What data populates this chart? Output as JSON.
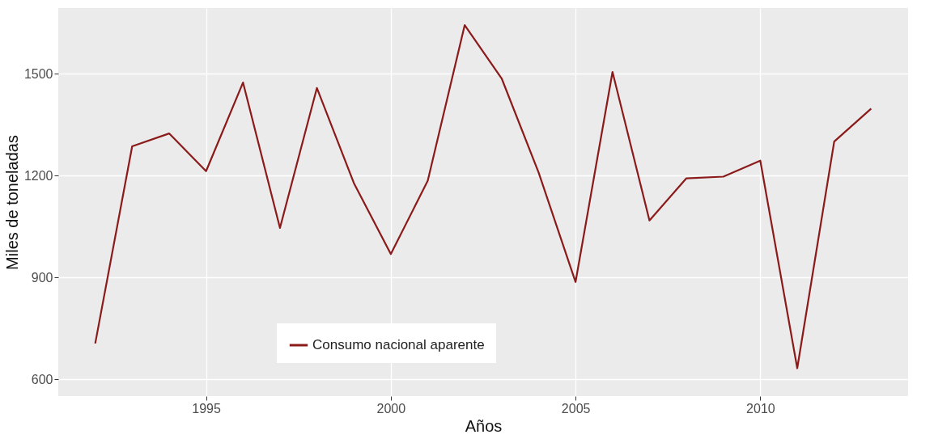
{
  "chart_data": {
    "type": "line",
    "xlabel": "Años",
    "ylabel": "Miles de toneladas",
    "x": [
      1992,
      1993,
      1994,
      1995,
      1996,
      1997,
      1998,
      1999,
      2000,
      2001,
      2002,
      2003,
      2004,
      2005,
      2006,
      2007,
      2008,
      2009,
      2010,
      2011,
      2012,
      2013
    ],
    "series": [
      {
        "name": "Consumo nacional aparente",
        "color": "#8b1a1a",
        "values": [
          706,
          1286,
          1324,
          1213,
          1474,
          1046,
          1458,
          1178,
          969,
          1185,
          1643,
          1486,
          1209,
          887,
          1505,
          1068,
          1192,
          1197,
          1244,
          633,
          1300,
          1397
        ]
      }
    ],
    "xlim": [
      1991,
      2014
    ],
    "xticks": [
      1995,
      2000,
      2005,
      2010
    ],
    "ylim": [
      551,
      1693
    ],
    "yticks": [
      600,
      900,
      1200,
      1500
    ],
    "grid": true,
    "legend": "bottom",
    "marker": "none",
    "line_style": "solid"
  }
}
